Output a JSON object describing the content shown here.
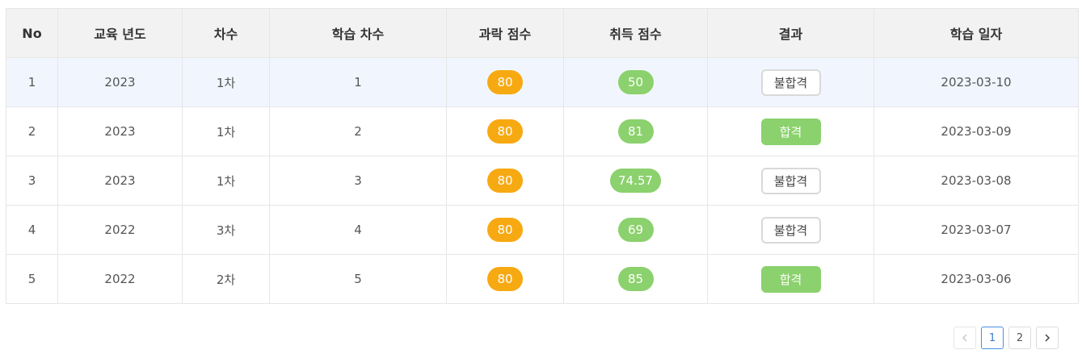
{
  "table": {
    "headers": [
      "No",
      "교육 년도",
      "차수",
      "학습 차수",
      "과락 점수",
      "취득 점수",
      "결과",
      "학습 일자"
    ],
    "rows": [
      {
        "no": "1",
        "year": "2023",
        "round": "1차",
        "study_round": "1",
        "cutoff": "80",
        "score": "50",
        "result": "불합격",
        "result_type": "fail",
        "date": "2023-03-10",
        "selected": true
      },
      {
        "no": "2",
        "year": "2023",
        "round": "1차",
        "study_round": "2",
        "cutoff": "80",
        "score": "81",
        "result": "합격",
        "result_type": "pass",
        "date": "2023-03-09",
        "selected": false
      },
      {
        "no": "3",
        "year": "2023",
        "round": "1차",
        "study_round": "3",
        "cutoff": "80",
        "score": "74.57",
        "result": "불합격",
        "result_type": "fail",
        "date": "2023-03-08",
        "selected": false
      },
      {
        "no": "4",
        "year": "2022",
        "round": "3차",
        "study_round": "4",
        "cutoff": "80",
        "score": "69",
        "result": "불합격",
        "result_type": "fail",
        "date": "2023-03-07",
        "selected": false
      },
      {
        "no": "5",
        "year": "2022",
        "round": "2차",
        "study_round": "5",
        "cutoff": "80",
        "score": "85",
        "result": "합격",
        "result_type": "pass",
        "date": "2023-03-06",
        "selected": false
      }
    ]
  },
  "pagination": {
    "prev_icon": "chevron-left-icon",
    "pages": [
      "1",
      "2"
    ],
    "current_page": "1",
    "next_icon": "chevron-right-icon"
  },
  "colors": {
    "cutoff_badge": "#f7a912",
    "score_badge": "#8bd16d",
    "pass_badge": "#8bd16d",
    "selected_row": "#f1f6fe",
    "header_bg": "#f2f2f2"
  }
}
